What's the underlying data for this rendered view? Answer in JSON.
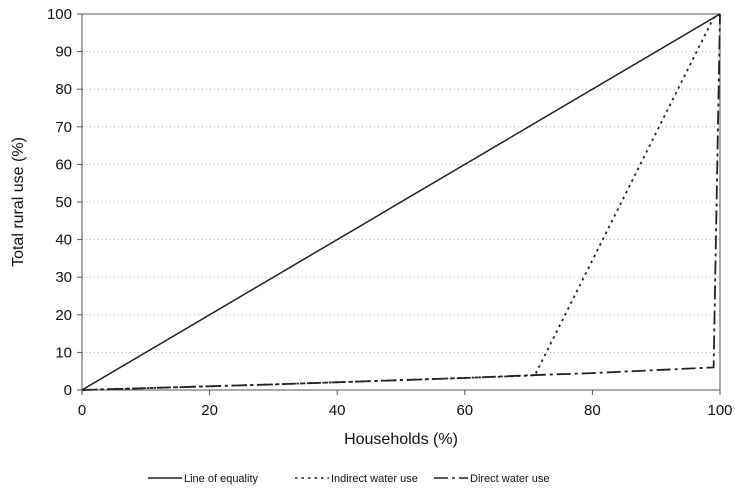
{
  "chart_data": {
    "type": "line",
    "title": "",
    "xlabel": "Households (%)",
    "ylabel": "Total rural use (%)",
    "xlim": [
      0,
      100
    ],
    "ylim": [
      0,
      100
    ],
    "xticks": [
      0,
      20,
      40,
      60,
      80,
      100
    ],
    "yticks": [
      0,
      10,
      20,
      30,
      40,
      50,
      60,
      70,
      80,
      90,
      100
    ],
    "grid": "horizontal dotted",
    "legend_position": "bottom",
    "series": [
      {
        "name": "Line of equality",
        "style": "solid",
        "points": [
          [
            0,
            0
          ],
          [
            100,
            100
          ]
        ]
      },
      {
        "name": "Indirect water use",
        "style": "dotted",
        "points": [
          [
            0,
            0
          ],
          [
            6,
            0.3
          ],
          [
            30,
            1.5
          ],
          [
            70,
            3.8
          ],
          [
            71,
            4
          ],
          [
            99,
            99
          ],
          [
            100,
            100
          ]
        ]
      },
      {
        "name": "Direct water use",
        "style": "dashed",
        "points": [
          [
            0,
            0
          ],
          [
            6,
            0.3
          ],
          [
            30,
            1.5
          ],
          [
            60,
            3.2
          ],
          [
            70,
            3.9
          ],
          [
            80,
            4.5
          ],
          [
            99,
            6
          ],
          [
            100,
            100
          ]
        ]
      }
    ]
  }
}
